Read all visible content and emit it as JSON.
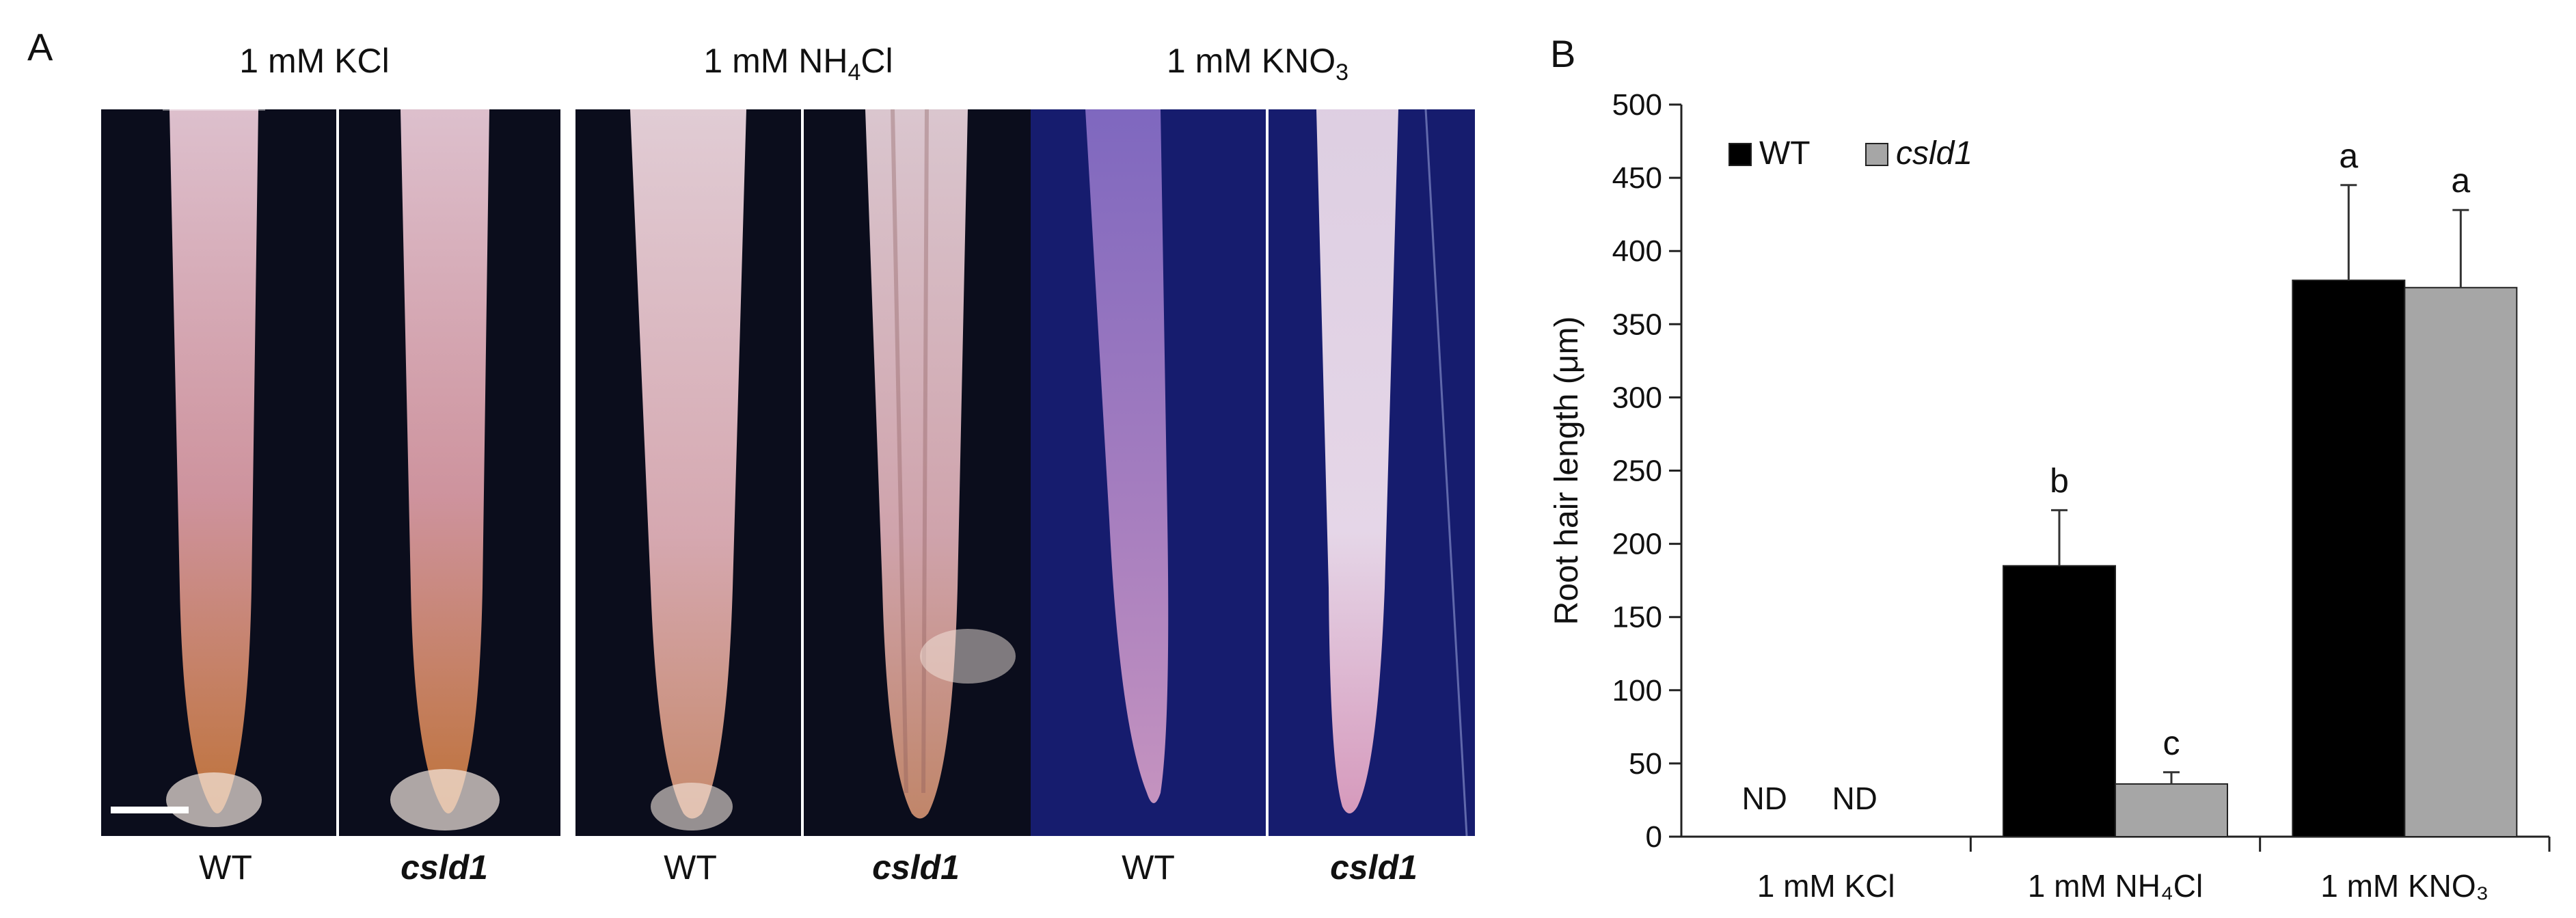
{
  "panel_a": {
    "label": "A",
    "conditions": [
      {
        "title_prefix": "1 mM KCl",
        "title_sub": "",
        "title_suffix": "",
        "genotypes": [
          "WT",
          "csld1"
        ]
      },
      {
        "title_prefix": "1 mM NH",
        "title_sub": "4",
        "title_suffix": "Cl",
        "genotypes": [
          "WT",
          "csld1"
        ]
      },
      {
        "title_prefix": "1 mM KNO",
        "title_sub": "3",
        "title_suffix": "",
        "genotypes": [
          "WT",
          "csld1"
        ]
      }
    ]
  },
  "chart_data": {
    "panel_label": "B",
    "type": "bar",
    "categories": [
      "1 mM KCl",
      "1 mM NH₄Cl",
      "1 mM KNO₃"
    ],
    "series": [
      {
        "name": "WT",
        "color": "#000000",
        "values": [
          null,
          185,
          380
        ],
        "errors": [
          null,
          38,
          65
        ],
        "labels": [
          "ND",
          "b",
          "a"
        ]
      },
      {
        "name": "csld1",
        "color": "#a6a6a6",
        "values": [
          null,
          36,
          375
        ],
        "errors": [
          null,
          8,
          53
        ],
        "labels": [
          "ND",
          "c",
          "a"
        ]
      }
    ],
    "ylabel": "Root hair length (μm)",
    "ylim": [
      0,
      500
    ],
    "yticks": [
      0,
      50,
      100,
      150,
      200,
      250,
      300,
      350,
      400,
      450,
      500
    ],
    "legend_position": "top-left",
    "grid": false
  }
}
